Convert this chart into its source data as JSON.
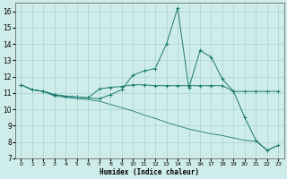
{
  "xlabel": "Humidex (Indice chaleur)",
  "xlim": [
    -0.5,
    23.5
  ],
  "ylim": [
    7,
    16.5
  ],
  "yticks": [
    7,
    8,
    9,
    10,
    11,
    12,
    13,
    14,
    15,
    16
  ],
  "xticks": [
    0,
    1,
    2,
    3,
    4,
    5,
    6,
    7,
    8,
    9,
    10,
    11,
    12,
    13,
    14,
    15,
    16,
    17,
    18,
    19,
    20,
    21,
    22,
    23
  ],
  "bg_color": "#ceecea",
  "grid_color": "#aad4d0",
  "line_color": "#1a7a6e",
  "line1_x": [
    0,
    1,
    2,
    3,
    4,
    5,
    6,
    7,
    8,
    9,
    10,
    11,
    12,
    13,
    14,
    15,
    16,
    17,
    18,
    19,
    20,
    21,
    22,
    23
  ],
  "line1_y": [
    11.5,
    11.2,
    11.1,
    10.9,
    10.8,
    10.75,
    10.7,
    11.25,
    11.35,
    11.4,
    11.5,
    11.5,
    11.45,
    11.45,
    11.45,
    11.45,
    11.45,
    11.45,
    11.45,
    11.1,
    11.1,
    11.1,
    11.1,
    11.1
  ],
  "line2_x": [
    0,
    1,
    2,
    3,
    4,
    5,
    6,
    7,
    8,
    9,
    10,
    11,
    12,
    13,
    14,
    15,
    16,
    17,
    18,
    19,
    20,
    21,
    22,
    23
  ],
  "line2_y": [
    11.5,
    11.2,
    11.1,
    10.9,
    10.8,
    10.75,
    10.7,
    10.65,
    10.9,
    11.2,
    12.1,
    12.35,
    12.5,
    14.0,
    16.2,
    11.3,
    13.6,
    13.2,
    11.85,
    11.1,
    9.5,
    8.1,
    7.5,
    7.8
  ],
  "line3_x": [
    0,
    1,
    2,
    3,
    4,
    5,
    6,
    7,
    8,
    9,
    10,
    11,
    12,
    13,
    14,
    15,
    16,
    17,
    18,
    19,
    20,
    21,
    22,
    23
  ],
  "line3_y": [
    11.5,
    11.2,
    11.1,
    10.8,
    10.75,
    10.65,
    10.6,
    10.5,
    10.3,
    10.1,
    9.9,
    9.65,
    9.45,
    9.2,
    9.0,
    8.8,
    8.65,
    8.5,
    8.4,
    8.25,
    8.1,
    8.05,
    7.5,
    7.8
  ]
}
